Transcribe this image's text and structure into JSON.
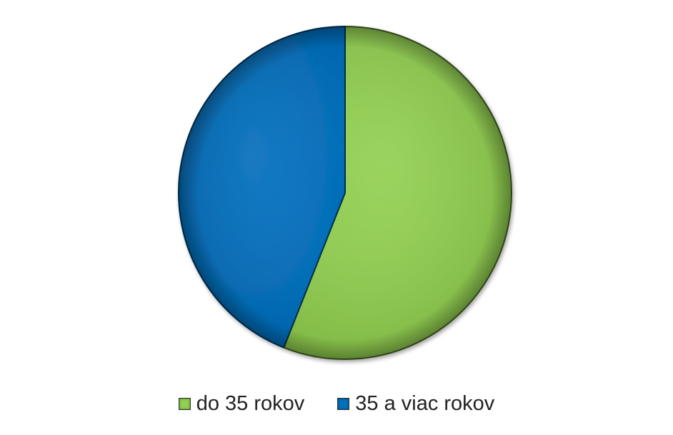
{
  "chart_data": {
    "type": "pie",
    "categories": [
      "do 35 rokov",
      "35 a viac rokov"
    ],
    "values": [
      56,
      44
    ],
    "colors": [
      "#92d050",
      "#0070c0"
    ],
    "title": "",
    "legend_position": "bottom",
    "start_angle_deg": 0,
    "direction": "clockwise"
  }
}
